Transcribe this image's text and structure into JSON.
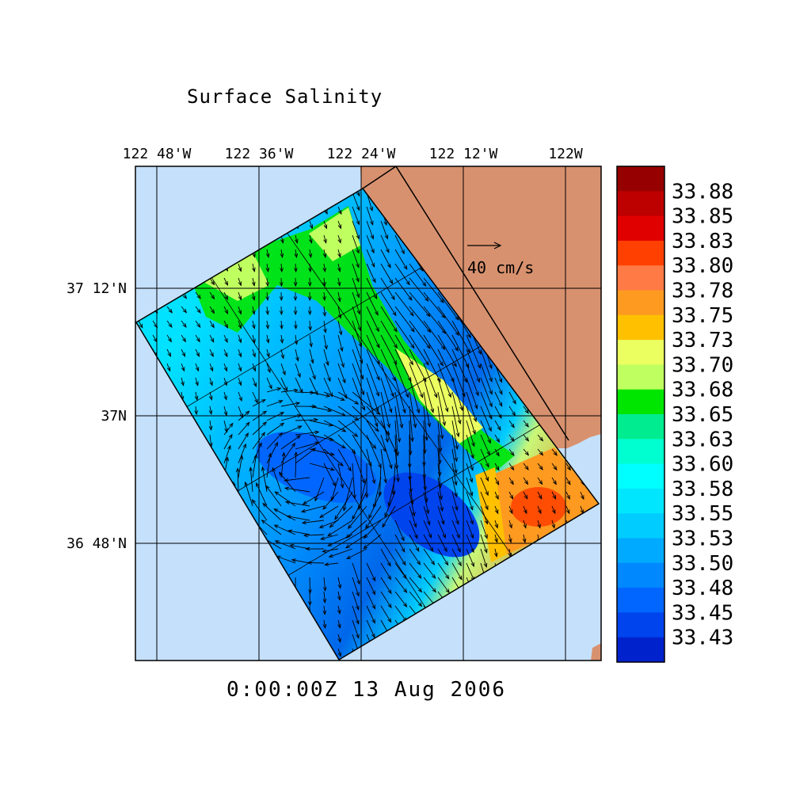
{
  "title": "Surface Salinity",
  "timestamp": "0:00:00Z  13 Aug 2006",
  "map": {
    "longitude_ticks": [
      {
        "label": "122 48'W",
        "value": -122.8
      },
      {
        "label": "122 36'W",
        "value": -122.6
      },
      {
        "label": "122 24'W",
        "value": -122.4
      },
      {
        "label": "122 12'W",
        "value": -122.2
      },
      {
        "label": "122W",
        "value": -122.0
      }
    ],
    "latitude_ticks": [
      {
        "label": "37 12'N",
        "value": 37.2
      },
      {
        "label": "37N",
        "value": 37.0
      },
      {
        "label": "36 48'N",
        "value": 36.8
      }
    ],
    "ocean_color": "#c5e0fb",
    "land_color": "#d8916e"
  },
  "vector_scale": {
    "label": "40 cm/s",
    "value": 40,
    "units": "cm/s"
  },
  "colorbar": {
    "labels": [
      "33.88",
      "33.85",
      "33.83",
      "33.80",
      "33.78",
      "33.75",
      "33.73",
      "33.70",
      "33.68",
      "33.65",
      "33.63",
      "33.60",
      "33.58",
      "33.55",
      "33.53",
      "33.50",
      "33.48",
      "33.45",
      "33.43"
    ],
    "colors_top_to_bottom": [
      "#960000",
      "#bd0000",
      "#e00000",
      "#ff4000",
      "#ff7a45",
      "#ff9a20",
      "#ffc000",
      "#ecff60",
      "#bfff60",
      "#00e600",
      "#00ec90",
      "#00ffd0",
      "#00ffff",
      "#00e6ff",
      "#00ccff",
      "#00aaff",
      "#0088ff",
      "#0066ff",
      "#0044ee",
      "#0022cc"
    ]
  }
}
